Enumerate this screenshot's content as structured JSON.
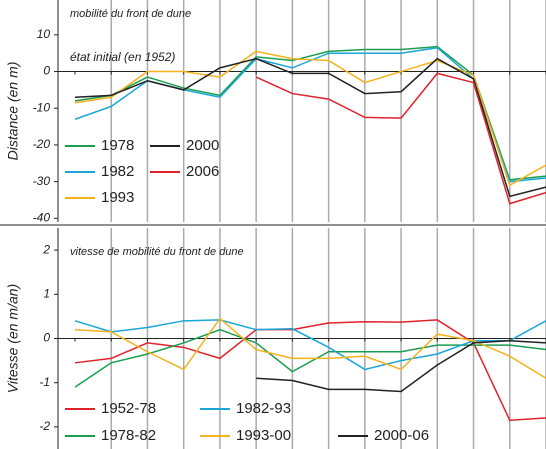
{
  "chart_data": [
    {
      "type": "line",
      "title": "mobilité du front de dune",
      "annotation": "état initial (en 1952)",
      "y_label": "Distance (en m)",
      "categories": [
        null,
        null,
        null,
        null,
        null,
        null,
        null,
        null,
        null,
        null,
        null,
        null,
        null,
        null
      ],
      "ylim": [
        -41,
        19.5
      ],
      "yticks": [
        -40,
        -30,
        -20,
        -10,
        0,
        10
      ],
      "series": [
        {
          "name": "1978",
          "color": "#1a9e50",
          "values": [
            -8,
            -6.5,
            -1.5,
            -4.5,
            -6.5,
            4,
            3,
            5.5,
            6,
            6,
            6.8,
            -1,
            -29.5,
            -28.5
          ]
        },
        {
          "name": "1982",
          "color": "#1aa6d8",
          "values": [
            -13,
            -9.5,
            -2.5,
            -5,
            -7,
            3.5,
            1,
            5,
            5,
            5,
            6.5,
            -2,
            -30,
            -29
          ]
        },
        {
          "name": "1993",
          "color": "#f5b21a",
          "values": [
            -8.5,
            -7,
            0,
            0,
            -1.5,
            5.5,
            3.5,
            3,
            -3,
            0,
            3,
            -1,
            -31,
            -25.5
          ]
        },
        {
          "name": "2000",
          "color": "#222222",
          "values": [
            -7,
            -6.5,
            -2.5,
            -5,
            1,
            3.5,
            -0.5,
            -0.5,
            -6,
            -5.5,
            3.5,
            -2,
            -34,
            -31.5
          ]
        },
        {
          "name": "2006",
          "color": "#e0222a",
          "values": [
            null,
            null,
            null,
            null,
            null,
            -1.5,
            -6,
            -7.5,
            -12.5,
            -12.7,
            -0.5,
            -3,
            -36,
            -33
          ]
        }
      ]
    },
    {
      "type": "line",
      "title": "vitesse de mobilité du front de dune",
      "y_label": "Vitesse (en m/an)",
      "categories": [
        null,
        null,
        null,
        null,
        null,
        null,
        null,
        null,
        null,
        null,
        null,
        null,
        null,
        null
      ],
      "ylim": [
        -2.5,
        2.5
      ],
      "yticks": [
        -2,
        -1,
        0,
        1,
        2
      ],
      "series": [
        {
          "name": "1952-78",
          "color": "#e0222a",
          "values": [
            -0.55,
            -0.45,
            -0.1,
            -0.2,
            -0.45,
            0.2,
            0.2,
            0.35,
            0.38,
            0.37,
            0.42,
            -0.1,
            -1.85,
            -1.8
          ]
        },
        {
          "name": "1978-82",
          "color": "#1a9e50",
          "values": [
            -1.1,
            -0.55,
            -0.35,
            -0.1,
            0.2,
            -0.1,
            -0.75,
            -0.3,
            -0.3,
            -0.3,
            -0.15,
            -0.15,
            -0.15,
            -0.25
          ]
        },
        {
          "name": "1982-93",
          "color": "#1aa6d8",
          "values": [
            0.4,
            0.15,
            0.25,
            0.4,
            0.42,
            0.2,
            0.22,
            -0.2,
            -0.7,
            -0.5,
            -0.35,
            -0.05,
            -0.05,
            0.4
          ]
        },
        {
          "name": "1993-00",
          "color": "#f5b21a",
          "values": [
            0.2,
            0.15,
            -0.3,
            -0.7,
            0.45,
            -0.25,
            -0.45,
            -0.45,
            -0.4,
            -0.7,
            0.1,
            -0.05,
            -0.4,
            -0.9
          ]
        },
        {
          "name": "2000-06",
          "color": "#222222",
          "values": [
            null,
            null,
            null,
            null,
            null,
            -0.9,
            -0.95,
            -1.15,
            -1.15,
            -1.2,
            -0.6,
            -0.1,
            -0.05,
            -0.1
          ]
        }
      ]
    }
  ]
}
